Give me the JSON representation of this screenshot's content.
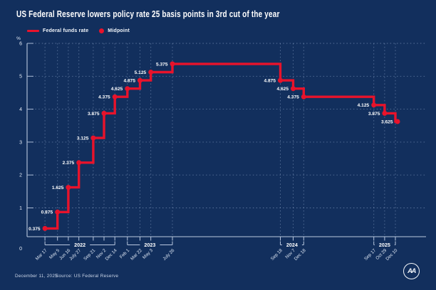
{
  "colors": {
    "background": "#122f5d",
    "accent_red": "#e8132b",
    "text": "#ffffff",
    "muted_text": "#ccd7e9",
    "grid": "#9db4d8",
    "axis": "#b9c8e0"
  },
  "footer": {
    "date_note": "December 11, 2025",
    "source": "Source: US Federal Reserve",
    "logo_text": "AA"
  },
  "chart_data": {
    "type": "line",
    "step": true,
    "title": "US Federal Reserve lowers policy rate 25 basis points in 3rd cut of the year",
    "legend": [
      "Federal funds rate",
      "Midpoint"
    ],
    "legend_position": "top-left",
    "ylabel": "%",
    "ylim": [
      0,
      6
    ],
    "yticks": [
      0,
      1,
      2,
      3,
      4,
      5,
      6
    ],
    "grid": true,
    "year_brackets": [
      "2022",
      "2023",
      "2024",
      "2025"
    ],
    "points": [
      {
        "label": "Mar 17",
        "y": 2022,
        "m": 3,
        "d": 17,
        "value": 0.375
      },
      {
        "label": "May 5",
        "y": 2022,
        "m": 5,
        "d": 5,
        "value": 0.875
      },
      {
        "label": "Jun 16",
        "y": 2022,
        "m": 6,
        "d": 16,
        "value": 1.625
      },
      {
        "label": "July 27",
        "y": 2022,
        "m": 7,
        "d": 27,
        "value": 2.375
      },
      {
        "label": "Sep 21",
        "y": 2022,
        "m": 9,
        "d": 21,
        "value": 3.125
      },
      {
        "label": "Nov 2",
        "y": 2022,
        "m": 11,
        "d": 2,
        "value": 3.875
      },
      {
        "label": "Dec 14",
        "y": 2022,
        "m": 12,
        "d": 14,
        "value": 4.375
      },
      {
        "label": "Feb 1",
        "y": 2023,
        "m": 2,
        "d": 1,
        "value": 4.625
      },
      {
        "label": "Mar 22",
        "y": 2023,
        "m": 3,
        "d": 22,
        "value": 4.875
      },
      {
        "label": "May 3",
        "y": 2023,
        "m": 5,
        "d": 3,
        "value": 5.125
      },
      {
        "label": "July 26",
        "y": 2023,
        "m": 7,
        "d": 26,
        "value": 5.375
      },
      {
        "label": "Sep 18",
        "y": 2024,
        "m": 9,
        "d": 18,
        "value": 4.875
      },
      {
        "label": "Nov 7",
        "y": 2024,
        "m": 11,
        "d": 7,
        "value": 4.625
      },
      {
        "label": "Dec 18",
        "y": 2024,
        "m": 12,
        "d": 18,
        "value": 4.375
      },
      {
        "label": "Sep 17",
        "y": 2025,
        "m": 9,
        "d": 17,
        "value": 4.125
      },
      {
        "label": "Oct 29",
        "y": 2025,
        "m": 10,
        "d": 29,
        "value": 3.875
      },
      {
        "label": "Dec 10",
        "y": 2025,
        "m": 12,
        "d": 10,
        "value": 3.625
      }
    ]
  }
}
